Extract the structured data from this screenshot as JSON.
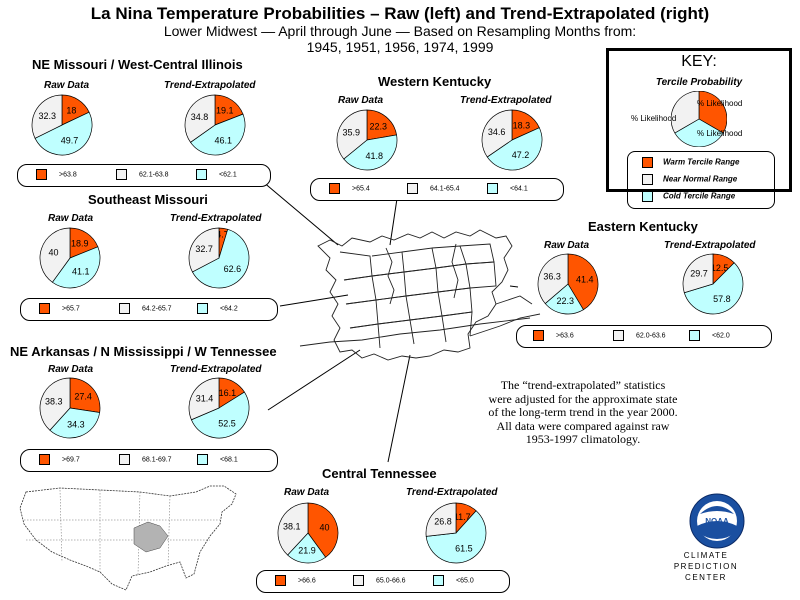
{
  "title": "La Nina Temperature Probabilities – Raw (left) and Trend-Extrapolated (right)",
  "subtitle_line1": "Lower Midwest — April through June —  Based on Resampling Months from:",
  "subtitle_line2": "1945, 1951, 1956, 1974, 1999",
  "pie_labels": {
    "raw": "Raw Data",
    "trend": "Trend-Extrapolated"
  },
  "colors": {
    "warm": "#ff5500",
    "normal": "#f2f2f2",
    "cold": "#bfffff"
  },
  "key": {
    "title": "KEY:",
    "subtitle": "Tercile Probability",
    "label_warm": "% Likelihood",
    "label_normal": "% Likelihood",
    "label_cold": "% Likelihood",
    "legend_warm": "Warm Tercile Range",
    "legend_normal": "Near Normal Range",
    "legend_cold": "Cold Tercile Range"
  },
  "note": "The “trend-extrapolated” statistics were adjusted for the approximate state of the long-term trend in the year 2000. All data were compared against raw 1953-1997 climatology.",
  "noaa": {
    "logo_text": "NOAA",
    "line1": "CLIMATE PREDICTION",
    "line2": "CENTER"
  },
  "chart_data": [
    {
      "type": "pie",
      "title": "NE Missouri / West-Central Illinois",
      "categories": [
        "Warm",
        "Near Normal",
        "Cold"
      ],
      "series": [
        {
          "name": "Raw Data",
          "values": [
            18,
            32.3,
            49.7
          ]
        },
        {
          "name": "Trend-Extrapolated",
          "values": [
            19.1,
            34.8,
            46.1
          ]
        }
      ],
      "ranges": [
        ">63.8",
        "62.1-63.8",
        "<62.1"
      ]
    },
    {
      "type": "pie",
      "title": "Western Kentucky",
      "categories": [
        "Warm",
        "Near Normal",
        "Cold"
      ],
      "series": [
        {
          "name": "Raw Data",
          "values": [
            22.3,
            35.9,
            41.8
          ]
        },
        {
          "name": "Trend-Extrapolated",
          "values": [
            18.3,
            34.6,
            47.2
          ]
        }
      ],
      "ranges": [
        ">65.4",
        "64.1-65.4",
        "<64.1"
      ]
    },
    {
      "type": "pie",
      "title": "Southeast Missouri",
      "categories": [
        "Warm",
        "Near Normal",
        "Cold"
      ],
      "series": [
        {
          "name": "Raw Data",
          "values": [
            18.9,
            40,
            41.1
          ]
        },
        {
          "name": "Trend-Extrapolated",
          "values": [
            4.7,
            32.7,
            62.6
          ]
        }
      ],
      "ranges": [
        ">65.7",
        "64.2-65.7",
        "<64.2"
      ]
    },
    {
      "type": "pie",
      "title": "Eastern Kentucky",
      "categories": [
        "Warm",
        "Near Normal",
        "Cold"
      ],
      "series": [
        {
          "name": "Raw Data",
          "values": [
            41.4,
            36.3,
            22.3
          ]
        },
        {
          "name": "Trend-Extrapolated",
          "values": [
            12.5,
            29.7,
            57.8
          ]
        }
      ],
      "ranges": [
        ">63.6",
        "62.0-63.6",
        "<62.0"
      ]
    },
    {
      "type": "pie",
      "title": "NE Arkansas / N Mississippi / W Tennessee",
      "categories": [
        "Warm",
        "Near Normal",
        "Cold"
      ],
      "series": [
        {
          "name": "Raw Data",
          "values": [
            27.4,
            38.3,
            34.3
          ]
        },
        {
          "name": "Trend-Extrapolated",
          "values": [
            16.1,
            31.4,
            52.5
          ]
        }
      ],
      "ranges": [
        ">69.7",
        "68.1-69.7",
        "<68.1"
      ]
    },
    {
      "type": "pie",
      "title": "Central Tennessee",
      "categories": [
        "Warm",
        "Near Normal",
        "Cold"
      ],
      "series": [
        {
          "name": "Raw Data",
          "values": [
            40,
            38.1,
            21.9
          ]
        },
        {
          "name": "Trend-Extrapolated",
          "values": [
            11.7,
            26.8,
            61.5
          ]
        }
      ],
      "ranges": [
        ">66.6",
        "65.0-66.6",
        "<65.0"
      ]
    }
  ]
}
